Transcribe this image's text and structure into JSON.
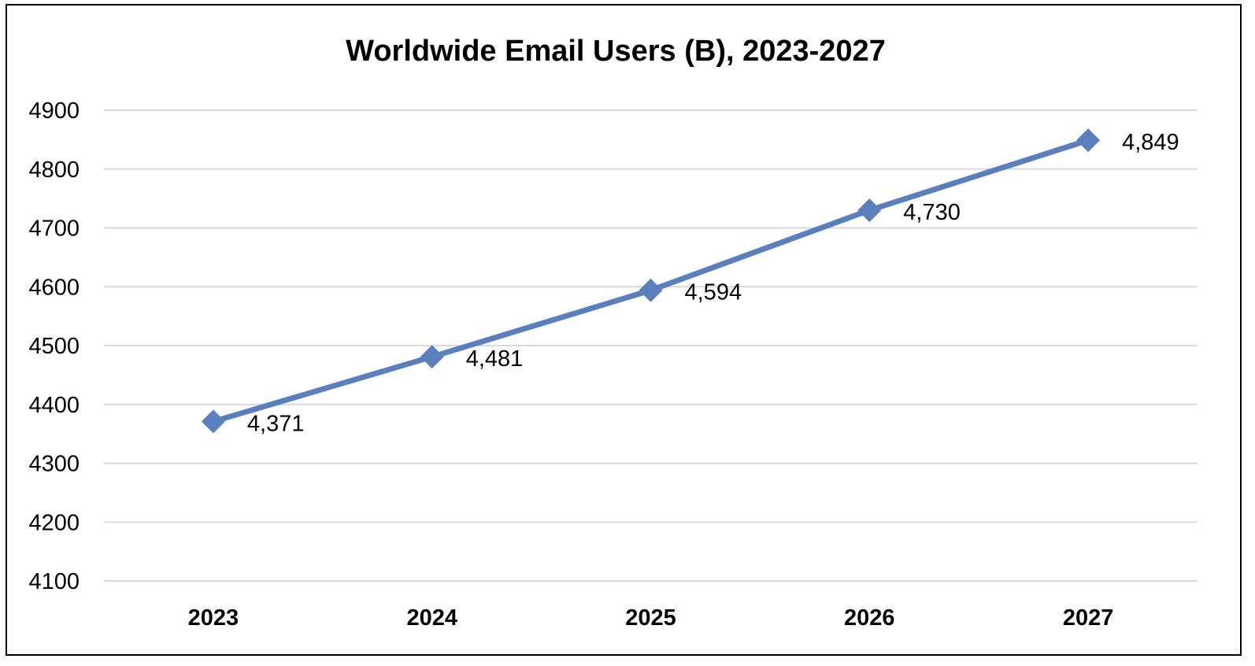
{
  "chart_data": {
    "type": "line",
    "title": "Worldwide Email Users (B), 2023-2027",
    "xlabel": "",
    "ylabel": "",
    "categories": [
      "2023",
      "2024",
      "2025",
      "2026",
      "2027"
    ],
    "series": [
      {
        "values": [
          4371,
          4481,
          4594,
          4730,
          4849
        ],
        "data_labels": [
          "4,371",
          "4,481",
          "4,594",
          "4,730",
          "4,849"
        ],
        "color": "#5B7FBD",
        "marker": "diamond"
      }
    ],
    "ylim": [
      4100,
      4900
    ],
    "yticks": [
      "4100",
      "4200",
      "4300",
      "4400",
      "4500",
      "4600",
      "4700",
      "4800",
      "4900"
    ],
    "grid": true,
    "gridline_color": "#D9D9D9",
    "legend": "none"
  }
}
